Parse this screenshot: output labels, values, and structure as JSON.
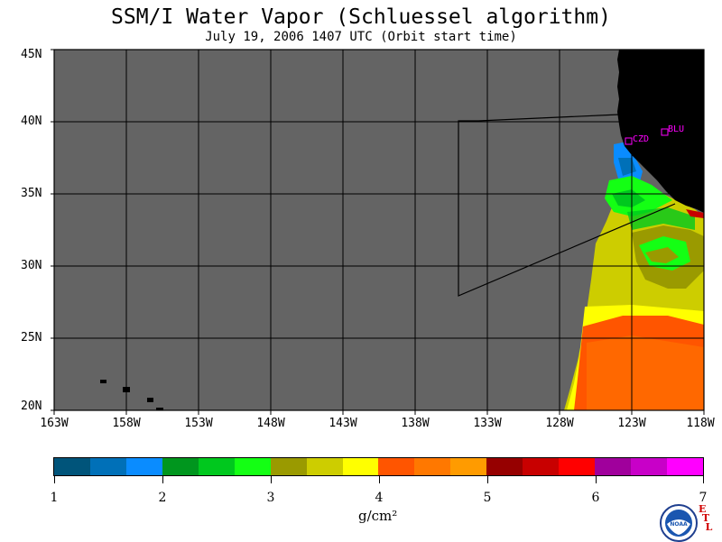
{
  "title": "SSM/I Water Vapor (Schluessel algorithm)",
  "subtitle": "July 19, 2006  1407 UTC  (Orbit start time)",
  "lat_labels": [
    "45N",
    "40N",
    "35N",
    "30N",
    "25N",
    "20N"
  ],
  "lon_labels": [
    "163W",
    "158W",
    "153W",
    "148W",
    "143W",
    "138W",
    "133W",
    "128W",
    "123W",
    "118W"
  ],
  "lat_values": [
    45,
    40,
    35,
    30,
    25,
    20
  ],
  "lon_values": [
    -163,
    -158,
    -153,
    -148,
    -143,
    -138,
    -133,
    -128,
    -123,
    -118
  ],
  "stations": [
    {
      "label": "CZD",
      "lat": 38.6,
      "lon": -123.2
    },
    {
      "label": "BLU",
      "lat": 39.3,
      "lon": -120.9
    }
  ],
  "colorbar": {
    "colors": [
      "#00547a",
      "#0070b8",
      "#0a8cff",
      "#00961e",
      "#00c81e",
      "#14ff14",
      "#9a9a00",
      "#cdcd00",
      "#ffff00",
      "#ff5500",
      "#ff7800",
      "#ff9b00",
      "#960000",
      "#c80000",
      "#ff0000",
      "#a0009c",
      "#c800c8",
      "#ff00ff"
    ],
    "tick_labels": [
      "1",
      "2",
      "3",
      "4",
      "5",
      "6",
      "7"
    ],
    "unit": "g/cm²"
  },
  "colors": {
    "ocean_no_data": "#646464",
    "land": "#000000",
    "station": "#ff00ff"
  },
  "logo_text": "NOAA",
  "corner_letters": [
    "E",
    "T",
    "L"
  ]
}
